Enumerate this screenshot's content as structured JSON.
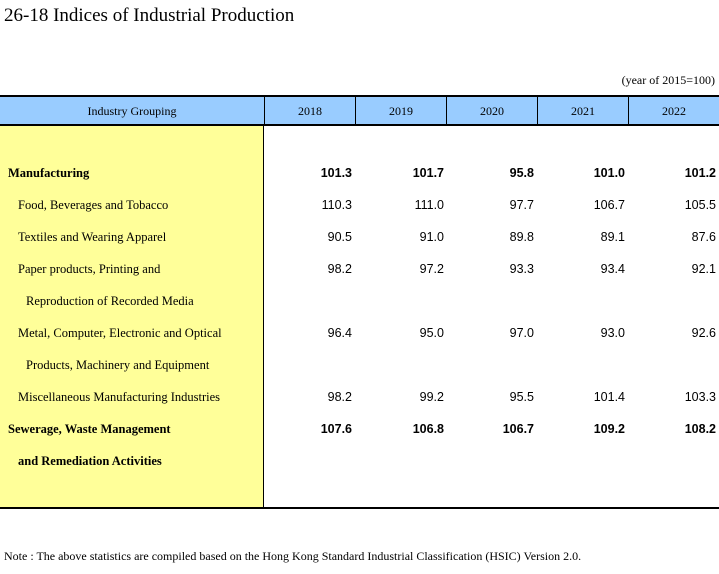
{
  "title": "26-18  Indices of Industrial Production",
  "unit_note": "(year of 2015=100)",
  "table": {
    "header": {
      "label": "Industry Grouping",
      "years": [
        "2018",
        "2019",
        "2020",
        "2021",
        "2022"
      ]
    },
    "rows": [
      {
        "label": "Manufacturing",
        "bold": true,
        "indent": 0,
        "values": [
          "101.3",
          "101.7",
          "95.8",
          "101.0",
          "101.2"
        ]
      },
      {
        "label": "Food, Beverages and Tobacco",
        "bold": false,
        "indent": 1,
        "values": [
          "110.3",
          "111.0",
          "97.7",
          "106.7",
          "105.5"
        ]
      },
      {
        "label": "Textiles and Wearing Apparel",
        "bold": false,
        "indent": 1,
        "values": [
          "90.5",
          "91.0",
          "89.8",
          "89.1",
          "87.6"
        ]
      },
      {
        "label": "Paper products, Printing and",
        "bold": false,
        "indent": 1,
        "values": [
          "98.2",
          "97.2",
          "93.3",
          "93.4",
          "92.1"
        ]
      },
      {
        "label": "Reproduction of Recorded Media",
        "bold": false,
        "indent": 2,
        "values": []
      },
      {
        "label": "Metal, Computer, Electronic and Optical",
        "bold": false,
        "indent": 1,
        "values": [
          "96.4",
          "95.0",
          "97.0",
          "93.0",
          "92.6"
        ]
      },
      {
        "label": "Products, Machinery and Equipment",
        "bold": false,
        "indent": 2,
        "values": []
      },
      {
        "label": "Miscellaneous Manufacturing Industries",
        "bold": false,
        "indent": 1,
        "values": [
          "98.2",
          "99.2",
          "95.5",
          "101.4",
          "103.3"
        ]
      },
      {
        "label": "Sewerage, Waste Management",
        "bold": true,
        "indent": 0,
        "values": [
          "107.6",
          "106.8",
          "106.7",
          "109.2",
          "108.2"
        ]
      },
      {
        "label": "and Remediation Activities",
        "bold": true,
        "indent": 1,
        "values": []
      }
    ]
  },
  "footnote": "Note : The above statistics are compiled based on the Hong Kong Standard Industrial Classification (HSIC) Version 2.0."
}
